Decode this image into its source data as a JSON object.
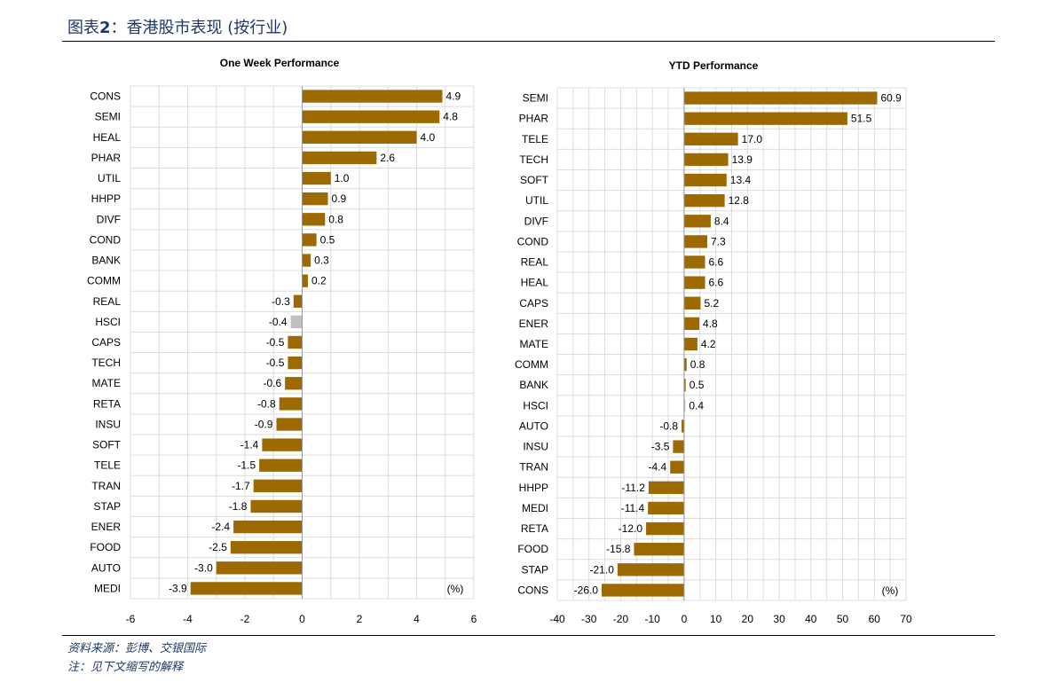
{
  "figure": {
    "label": "图表",
    "number": "2",
    "colon": "：",
    "title": "香港股市表现 (按行业)"
  },
  "colors": {
    "bar": "#9c6a00",
    "highlight": "#bfbfbf",
    "grid": "#dcdcdc",
    "title_text": "#1f3864"
  },
  "footer": {
    "source": "资料来源：彭博、交银国际",
    "note": "注：见下文缩写的解释"
  },
  "chart_data": [
    {
      "type": "bar",
      "orientation": "horizontal",
      "title": "One Week Performance",
      "unit_label": "(%)",
      "highlight_category": "HSCI",
      "xlim": [
        -6,
        6
      ],
      "xticks": [
        -6,
        -4,
        -2,
        0,
        2,
        4,
        6
      ],
      "grid": true,
      "categories": [
        "CONS",
        "SEMI",
        "HEAL",
        "PHAR",
        "UTIL",
        "HHPP",
        "DIVF",
        "COND",
        "BANK",
        "COMM",
        "REAL",
        "HSCI",
        "CAPS",
        "TECH",
        "MATE",
        "RETA",
        "INSU",
        "SOFT",
        "TELE",
        "TRAN",
        "STAP",
        "ENER",
        "FOOD",
        "AUTO",
        "MEDI"
      ],
      "values": [
        4.9,
        4.8,
        4.0,
        2.6,
        1.0,
        0.9,
        0.8,
        0.5,
        0.3,
        0.2,
        -0.3,
        -0.4,
        -0.5,
        -0.5,
        -0.6,
        -0.8,
        -0.9,
        -1.4,
        -1.5,
        -1.7,
        -1.8,
        -2.4,
        -2.5,
        -3.0,
        -3.9
      ]
    },
    {
      "type": "bar",
      "orientation": "horizontal",
      "title": "YTD Performance",
      "unit_label": "(%)",
      "highlight_category": "HSCI",
      "xlim": [
        -40,
        70
      ],
      "xticks": [
        -40,
        -30,
        -20,
        -10,
        0,
        10,
        20,
        30,
        40,
        50,
        60,
        70
      ],
      "grid": true,
      "categories": [
        "SEMI",
        "PHAR",
        "TELE",
        "TECH",
        "SOFT",
        "UTIL",
        "DIVF",
        "COND",
        "REAL",
        "HEAL",
        "CAPS",
        "ENER",
        "MATE",
        "COMM",
        "BANK",
        "HSCI",
        "AUTO",
        "INSU",
        "TRAN",
        "HHPP",
        "MEDI",
        "RETA",
        "FOOD",
        "STAP",
        "CONS"
      ],
      "values": [
        60.9,
        51.5,
        17.0,
        13.9,
        13.4,
        12.8,
        8.4,
        7.3,
        6.6,
        6.6,
        5.2,
        4.8,
        4.2,
        0.8,
        0.5,
        0.4,
        -0.8,
        -3.5,
        -4.4,
        -11.2,
        -11.4,
        -12.0,
        -15.8,
        -21.0,
        -26.0
      ]
    }
  ]
}
